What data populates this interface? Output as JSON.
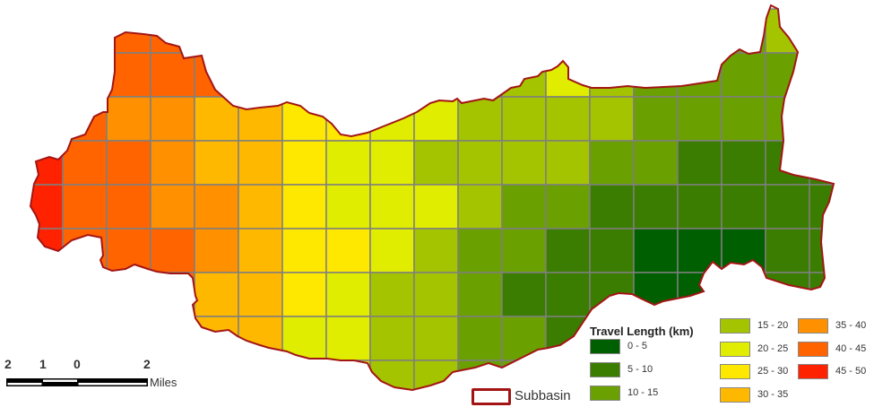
{
  "legend": {
    "title": "Travel Length (km)",
    "classes": [
      {
        "label": "0 - 5",
        "color": "#005f00"
      },
      {
        "label": "5 - 10",
        "color": "#3a7d00"
      },
      {
        "label": "10 - 15",
        "color": "#6aa000"
      },
      {
        "label": "15 - 20",
        "color": "#a5c400"
      },
      {
        "label": "20 - 25",
        "color": "#e0ec00"
      },
      {
        "label": "25 - 30",
        "color": "#ffe800"
      },
      {
        "label": "30 - 35",
        "color": "#ffb800"
      },
      {
        "label": "35 - 40",
        "color": "#ff9000"
      },
      {
        "label": "40 - 45",
        "color": "#ff6400"
      },
      {
        "label": "45 - 50",
        "color": "#ff2200"
      }
    ],
    "subbasin_label": "Subbasin",
    "subbasin_color": "#a31515"
  },
  "scale_bar": {
    "ticks": [
      "2",
      "1",
      "0",
      "2"
    ],
    "unit": "Miles"
  },
  "grid_class_index": [
    [
      null,
      null,
      8,
      8,
      8,
      null,
      null,
      null,
      null,
      null,
      null,
      null,
      null,
      null,
      null,
      null,
      2,
      3,
      null
    ],
    [
      null,
      8,
      8,
      8,
      8,
      6,
      5,
      5,
      4,
      4,
      3,
      3,
      4,
      3,
      2,
      2,
      2,
      2,
      null
    ],
    [
      8,
      8,
      7,
      7,
      6,
      6,
      5,
      5,
      4,
      4,
      3,
      3,
      3,
      3,
      2,
      2,
      2,
      2,
      2
    ],
    [
      9,
      8,
      8,
      7,
      6,
      6,
      5,
      4,
      4,
      3,
      3,
      3,
      3,
      2,
      2,
      1,
      1,
      1,
      1
    ],
    [
      9,
      8,
      8,
      7,
      7,
      6,
      5,
      4,
      4,
      4,
      3,
      2,
      2,
      1,
      1,
      1,
      1,
      1,
      1
    ],
    [
      9,
      8,
      8,
      8,
      7,
      6,
      5,
      5,
      4,
      3,
      2,
      2,
      1,
      1,
      0,
      0,
      0,
      1,
      1
    ],
    [
      8,
      8,
      8,
      8,
      6,
      6,
      5,
      4,
      3,
      3,
      2,
      1,
      1,
      1,
      0,
      0,
      0,
      1,
      1
    ],
    [
      null,
      null,
      null,
      6,
      6,
      6,
      4,
      4,
      3,
      3,
      2,
      2,
      1,
      1,
      0,
      0,
      null,
      null,
      null
    ],
    [
      null,
      null,
      null,
      null,
      null,
      null,
      4,
      4,
      3,
      3,
      2,
      2,
      1,
      null,
      null,
      null,
      null,
      null,
      null
    ]
  ]
}
